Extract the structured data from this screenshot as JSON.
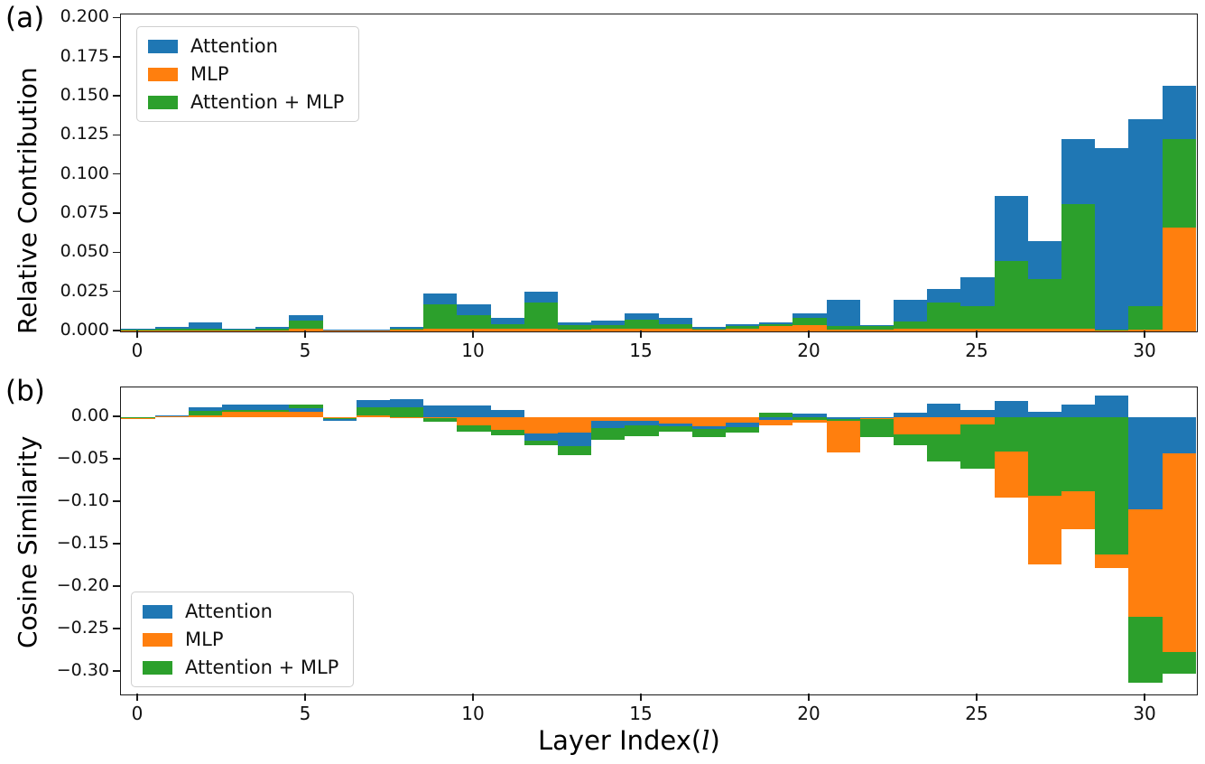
{
  "figure": {
    "panel_a_letter": "(a)",
    "panel_b_letter": "(b)",
    "ylabel_a": "Relative Contribution",
    "ylabel_b": "Cosine Similarity",
    "xlabel_prefix": "Layer Index(",
    "xlabel_var": "l",
    "xlabel_suffix": ")"
  },
  "colors": {
    "attention": "#1f77b4",
    "mlp": "#ff7f0e",
    "attention_mlp": "#2ca02c",
    "axis": "#1a1a1a",
    "background": "#ffffff"
  },
  "legend": {
    "entries": [
      {
        "label": "Attention",
        "color": "#1f77b4"
      },
      {
        "label": "MLP",
        "color": "#ff7f0e"
      },
      {
        "label": "Attention + MLP",
        "color": "#2ca02c"
      }
    ]
  },
  "chart_data": [
    {
      "type": "bar",
      "panel": "a",
      "ylabel": "Relative Contribution",
      "xlabel": "Layer Index(l)",
      "bar_style": "overlapping zero-anchored bars; visible bands ordered smallest magnitude nearest zero",
      "legend_position": "upper left",
      "grid": false,
      "x": [
        0,
        1,
        2,
        3,
        4,
        5,
        6,
        7,
        8,
        9,
        10,
        11,
        12,
        13,
        14,
        15,
        16,
        17,
        18,
        19,
        20,
        21,
        22,
        23,
        24,
        25,
        26,
        27,
        28,
        29,
        30,
        31
      ],
      "xticks": [
        0,
        5,
        10,
        15,
        20,
        25,
        30
      ],
      "ylim": [
        0,
        0.2
      ],
      "yticks": [
        {
          "v": 0.0,
          "label": "0.000"
        },
        {
          "v": 0.025,
          "label": "0.025"
        },
        {
          "v": 0.05,
          "label": "0.050"
        },
        {
          "v": 0.075,
          "label": "0.075"
        },
        {
          "v": 0.1,
          "label": "0.100"
        },
        {
          "v": 0.125,
          "label": "0.125"
        },
        {
          "v": 0.15,
          "label": "0.150"
        },
        {
          "v": 0.175,
          "label": "0.175"
        },
        {
          "v": 0.2,
          "label": "0.200"
        }
      ],
      "series": [
        {
          "name": "Attention",
          "color": "#1f77b4",
          "values": [
            0.002,
            0.003,
            0.0058,
            0.0015,
            0.0026,
            0.0105,
            0.0014,
            0.0012,
            0.0028,
            0.024,
            0.0172,
            0.0086,
            0.0253,
            0.0057,
            0.007,
            0.0113,
            0.0084,
            0.0028,
            0.0048,
            0.006,
            0.0114,
            0.0201,
            0.0043,
            0.0201,
            0.0272,
            0.0345,
            0.0865,
            0.0576,
            0.1227,
            0.1173,
            0.1355,
            0.1567
          ]
        },
        {
          "name": "MLP",
          "color": "#ff7f0e",
          "values": [
            0.0008,
            0.0008,
            0.0008,
            0.0006,
            0.0008,
            0.0018,
            0.0006,
            0.0006,
            0.0014,
            0.0015,
            0.0015,
            0.0015,
            0.0018,
            0.0012,
            0.0015,
            0.0018,
            0.0018,
            0.0012,
            0.002,
            0.0032,
            0.0042,
            0.0012,
            0.0012,
            0.0015,
            0.0015,
            0.0015,
            0.002,
            0.002,
            0.002,
            0.0006,
            0.0012,
            0.0663
          ]
        },
        {
          "name": "Attention + MLP",
          "color": "#2ca02c",
          "values": [
            0.0016,
            0.0018,
            0.0018,
            0.001,
            0.0018,
            0.0072,
            0.001,
            0.0009,
            0.002,
            0.0172,
            0.0105,
            0.0047,
            0.0182,
            0.0038,
            0.0042,
            0.0074,
            0.0049,
            0.002,
            0.0032,
            0.0044,
            0.0084,
            0.0032,
            0.0032,
            0.0066,
            0.0182,
            0.0163,
            0.0451,
            0.0336,
            0.0813,
            0.001,
            0.0163,
            0.123
          ]
        }
      ]
    },
    {
      "type": "bar",
      "panel": "b",
      "ylabel": "Cosine Similarity",
      "xlabel": "Layer Index(l)",
      "bar_style": "overlapping zero-anchored bars; visible bands ordered smallest magnitude nearest zero",
      "legend_position": "lower left",
      "grid": false,
      "x": [
        0,
        1,
        2,
        3,
        4,
        5,
        6,
        7,
        8,
        9,
        10,
        11,
        12,
        13,
        14,
        15,
        16,
        17,
        18,
        19,
        20,
        21,
        22,
        23,
        24,
        25,
        26,
        27,
        28,
        29,
        30,
        31
      ],
      "xticks": [
        0,
        5,
        10,
        15,
        20,
        25,
        30
      ],
      "ylim": [
        -0.3266,
        0.035
      ],
      "yticks": [
        {
          "v": 0.0,
          "label": "0.00"
        },
        {
          "v": -0.05,
          "label": "−0.05"
        },
        {
          "v": -0.1,
          "label": "−0.10"
        },
        {
          "v": -0.15,
          "label": "−0.15"
        },
        {
          "v": -0.2,
          "label": "−0.20"
        },
        {
          "v": -0.25,
          "label": "−0.25"
        },
        {
          "v": -0.3,
          "label": "−0.30"
        }
      ],
      "series": [
        {
          "name": "Attention",
          "color": "#1f77b4",
          "values": [
            -0.001,
            0.002,
            0.0117,
            0.0152,
            0.0152,
            0.011,
            -0.0043,
            0.0206,
            0.0216,
            0.0135,
            0.0135,
            0.008,
            -0.028,
            -0.034,
            -0.013,
            -0.0096,
            -0.0103,
            -0.0135,
            -0.0113,
            -0.0032,
            0.0039,
            -0.002,
            -0.001,
            0.005,
            0.016,
            0.009,
            0.0195,
            0.0067,
            0.0149,
            0.026,
            -0.109,
            -0.043
          ]
        },
        {
          "name": "MLP",
          "color": "#ff7f0e",
          "values": [
            -0.0012,
            0.0015,
            0.002,
            0.0067,
            0.006,
            0.0064,
            -0.001,
            0.002,
            -0.001,
            -0.0015,
            -0.0096,
            -0.015,
            -0.019,
            -0.018,
            -0.004,
            -0.004,
            -0.0078,
            -0.0103,
            -0.006,
            -0.0096,
            -0.006,
            -0.0415,
            -0.002,
            -0.0202,
            -0.02,
            -0.008,
            -0.095,
            -0.173,
            -0.132,
            -0.178,
            -0.235,
            -0.277
          ]
        },
        {
          "name": "Attention + MLP",
          "color": "#2ca02c",
          "values": [
            -0.0008,
            0.001,
            0.0074,
            0.0089,
            0.0089,
            0.0145,
            -0.002,
            0.0117,
            0.012,
            -0.005,
            -0.0174,
            -0.021,
            -0.033,
            -0.045,
            -0.027,
            -0.022,
            -0.0167,
            -0.0237,
            -0.0184,
            0.0055,
            -0.003,
            -0.0045,
            -0.0237,
            -0.0326,
            -0.052,
            -0.061,
            -0.04,
            -0.093,
            -0.0876,
            -0.162,
            -0.313,
            -0.302
          ]
        }
      ]
    }
  ]
}
